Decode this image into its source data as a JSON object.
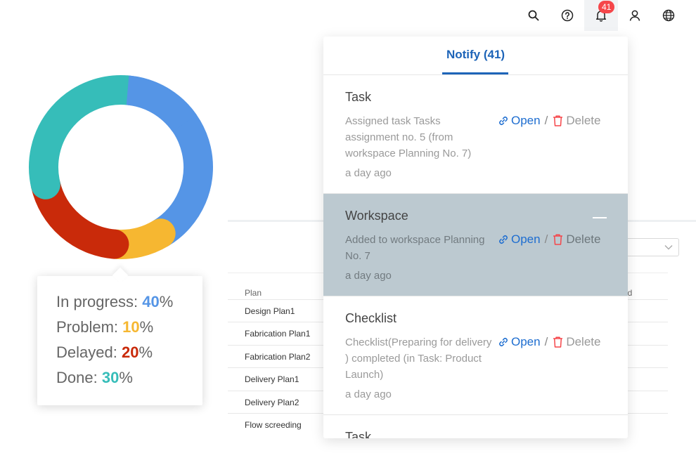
{
  "topbar": {
    "icons": [
      "search-icon",
      "help-circle-icon",
      "bell-icon",
      "user-icon",
      "globe-icon"
    ],
    "notification_count": "41"
  },
  "chart_data": {
    "type": "pie",
    "variant": "donut",
    "categories": [
      "In progress",
      "Problem",
      "Delayed",
      "Done"
    ],
    "values": [
      40,
      10,
      20,
      30
    ],
    "colors": [
      "#5595e6",
      "#f6b731",
      "#c92a0a",
      "#36bdb9"
    ],
    "tooltip": {
      "rows": [
        {
          "label": "In progress: ",
          "value": "40",
          "suffix": "%",
          "color": "#5595e6"
        },
        {
          "label": "Problem: ",
          "value": "10",
          "suffix": "%",
          "color": "#f6b731"
        },
        {
          "label": "Delayed: ",
          "value": "20",
          "suffix": "%",
          "color": "#c92a0a"
        },
        {
          "label": "Done: ",
          "value": "30",
          "suffix": "%",
          "color": "#36bdb9"
        }
      ]
    }
  },
  "table": {
    "col_plan": "Plan",
    "col_right": "ed",
    "rows": [
      "Design Plan1",
      "Fabrication Plan1",
      "Fabrication Plan2",
      "Delivery Plan1",
      "Delivery Plan2",
      "Flow screeding"
    ]
  },
  "notify": {
    "title": "Notify (41)",
    "open_label": "Open",
    "separator": "/",
    "delete_label": "Delete",
    "items": [
      {
        "title": "Task",
        "message": "Assigned task Tasks assignment no. 5 (from workspace Planning No. 7)",
        "time": "a day ago"
      },
      {
        "title": "Workspace",
        "message": "Added to workspace Planning No. 7",
        "time": "a day ago"
      },
      {
        "title": "Checklist",
        "message": "Checklist(Preparing for delivery ) completed (in Task: Product Launch)",
        "time": "a day ago"
      },
      {
        "title": "Task"
      }
    ]
  }
}
